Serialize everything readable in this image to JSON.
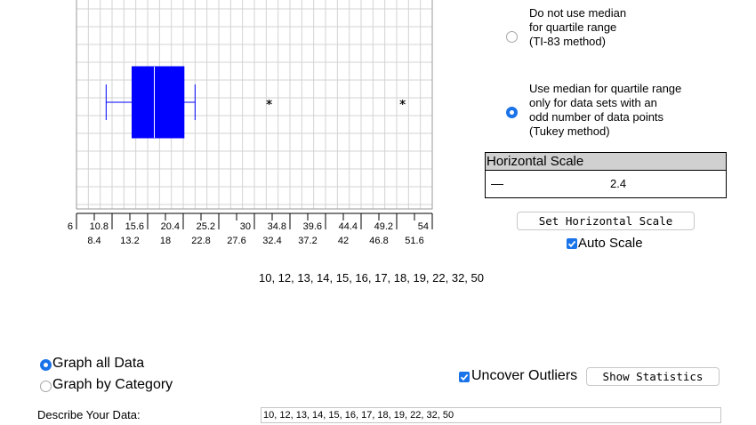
{
  "chart_data": {
    "type": "boxplot",
    "orientation": "horizontal",
    "values": [
      10,
      12,
      13,
      14,
      15,
      16,
      17,
      18,
      19,
      22,
      32,
      50
    ],
    "whisker_low": 10,
    "q1": 13.5,
    "median": 16.5,
    "q3": 20.5,
    "whisker_high": 22,
    "outliers": [
      32,
      50
    ],
    "xlim": [
      6,
      54
    ],
    "tick_labels_upper": [
      "6",
      "10.8",
      "15.6",
      "20.4",
      "25.2",
      "30",
      "34.8",
      "39.6",
      "44.4",
      "49.2",
      "54"
    ],
    "tick_labels_lower": [
      "8.4",
      "13.2",
      "18",
      "22.8",
      "27.6",
      "32.4",
      "37.2",
      "42",
      "46.8",
      "51.6"
    ],
    "grid": true,
    "box_color": "#0000ff"
  },
  "data_list_text": "10, 12, 13, 14, 15, 16, 17, 18, 19, 22, 32, 50",
  "options": {
    "ti83_label_lines": [
      "Do not use median",
      "for quartile range",
      "(TI-83 method)"
    ],
    "ti83_selected": false,
    "tukey_label_lines": [
      "Use median for quartile range",
      "only for data sets with an",
      "odd number of data points",
      "(Tukey method)"
    ],
    "tukey_selected": true
  },
  "horizontal_scale": {
    "header": "Horizontal Scale",
    "line_glyph": "—",
    "value": "2.4",
    "set_button": "Set Horizontal Scale",
    "auto_scale_label": "Auto Scale",
    "auto_scale_checked": true
  },
  "graph_mode": {
    "all_data_label": "Graph all Data",
    "all_data_selected": true,
    "by_category_label": "Graph by Category",
    "by_category_selected": false
  },
  "uncover_outliers_label": "Uncover Outliers",
  "uncover_outliers_checked": true,
  "show_statistics_button": "Show Statistics",
  "describe_label": "Describe Your Data:",
  "describe_value": "10, 12, 13, 14, 15, 16, 17, 18, 19, 22, 32, 50",
  "colors": {
    "accent": "#1a73e8",
    "box": "#0000ff",
    "grid": "#d3d3d3"
  }
}
